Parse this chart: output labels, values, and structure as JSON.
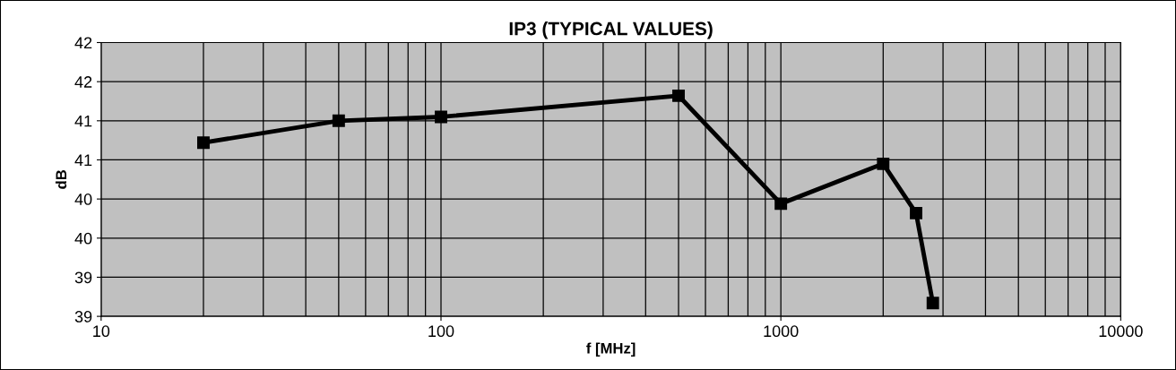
{
  "chart_data": {
    "type": "line",
    "title": "IP3 (TYPICAL VALUES)",
    "xlabel": "f [MHz]",
    "ylabel": "dB",
    "x": [
      20,
      50,
      100,
      500,
      1000,
      2000,
      2500,
      2800
    ],
    "series": [
      {
        "color": "#000000",
        "values": [
          41.22,
          41.5,
          41.55,
          41.82,
          40.44,
          40.95,
          40.32,
          39.17
        ]
      }
    ],
    "log": "x",
    "xlim": [
      10,
      10000
    ],
    "xticks": [
      10,
      100,
      1000,
      10000
    ],
    "ylim": [
      39,
      42.5
    ],
    "yticks": [
      {
        "value": 39,
        "label": "39"
      },
      {
        "value": 39.5,
        "label": "39"
      },
      {
        "value": 40,
        "label": "40"
      },
      {
        "value": 40.5,
        "label": "40"
      },
      {
        "value": 41,
        "label": "41"
      },
      {
        "value": 41.5,
        "label": "41"
      },
      {
        "value": 42,
        "label": "42"
      },
      {
        "value": 42.5,
        "label": "42"
      }
    ],
    "grid": true,
    "marker": "square",
    "line_style": "solid"
  }
}
